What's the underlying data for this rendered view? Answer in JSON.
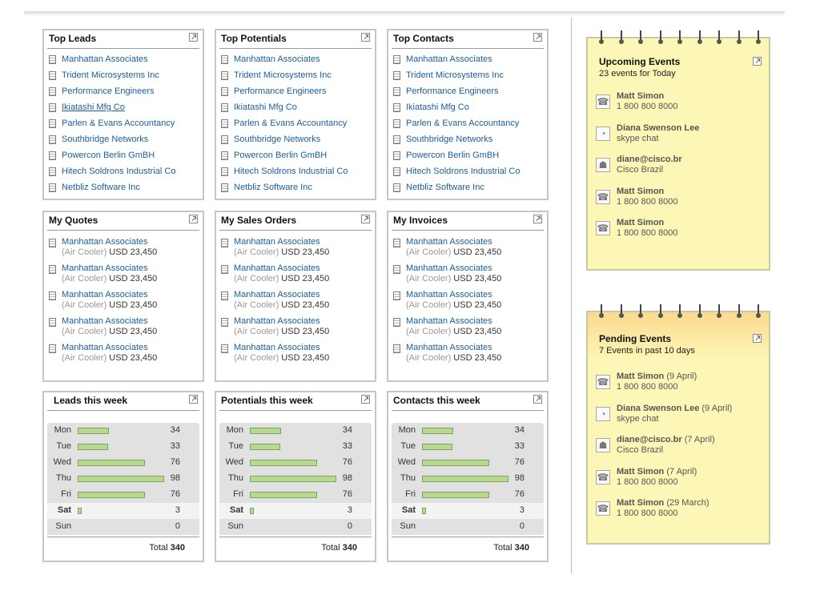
{
  "top_panels": [
    {
      "title": "Top Leads",
      "items": [
        "Manhattan Associates",
        "Trident Microsystems Inc",
        "Performance Engineers",
        "Ikiatashi Mfg Co",
        "Parlen & Evans Accountancy",
        "Southbridge Networks",
        "Powercon Berlin GmBH",
        "Hitech Soldrons Industrial Co",
        "Netbliz Software Inc"
      ]
    },
    {
      "title": "Top Potentials",
      "items": [
        "Manhattan Associates",
        "Trident Microsystems Inc",
        "Performance Engineers",
        "Ikiatashi Mfg Co",
        "Parlen & Evans Accountancy",
        "Southbridge Networks",
        "Powercon Berlin GmBH",
        "Hitech Soldrons Industrial Co",
        "Netbliz Software Inc"
      ]
    },
    {
      "title": "Top Contacts",
      "items": [
        "Manhattan Associates",
        "Trident Microsystems Inc",
        "Performance Engineers",
        "Ikiatashi Mfg Co",
        "Parlen & Evans Accountancy",
        "Southbridge Networks",
        "Powercon Berlin GmBH",
        "Hitech Soldrons Industrial Co",
        "Netbliz Software Inc"
      ]
    }
  ],
  "mid_panels": [
    {
      "title": "My Quotes",
      "items": [
        {
          "name": "Manhattan Associates",
          "product": "(Air Cooler)",
          "amount": "USD 23,450"
        },
        {
          "name": "Manhattan Associates",
          "product": "(Air Cooler)",
          "amount": "USD 23,450"
        },
        {
          "name": "Manhattan Associates",
          "product": "(Air Cooler)",
          "amount": "USD 23,450"
        },
        {
          "name": "Manhattan Associates",
          "product": "(Air Cooler)",
          "amount": "USD 23,450"
        },
        {
          "name": "Manhattan Associates",
          "product": "(Air Cooler)",
          "amount": "USD 23,450"
        }
      ]
    },
    {
      "title": "My Sales Orders",
      "items": [
        {
          "name": "Manhattan Associates",
          "product": "(Air Cooler)",
          "amount": "USD 23,450"
        },
        {
          "name": "Manhattan Associates",
          "product": "(Air Cooler)",
          "amount": "USD 23,450"
        },
        {
          "name": "Manhattan Associates",
          "product": "(Air Cooler)",
          "amount": "USD 23,450"
        },
        {
          "name": "Manhattan Associates",
          "product": "(Air Cooler)",
          "amount": "USD 23,450"
        },
        {
          "name": "Manhattan Associates",
          "product": "(Air Cooler)",
          "amount": "USD 23,450"
        }
      ]
    },
    {
      "title": "My Invoices",
      "items": [
        {
          "name": "Manhattan Associates",
          "product": "(Air Cooler)",
          "amount": "USD 23,450"
        },
        {
          "name": "Manhattan Associates",
          "product": "(Air Cooler)",
          "amount": "USD 23,450"
        },
        {
          "name": "Manhattan Associates",
          "product": "(Air Cooler)",
          "amount": "USD 23,450"
        },
        {
          "name": "Manhattan Associates",
          "product": "(Air Cooler)",
          "amount": "USD 23,450"
        },
        {
          "name": "Manhattan Associates",
          "product": "(Air Cooler)",
          "amount": "USD 23,450"
        }
      ]
    }
  ],
  "week_panels": [
    {
      "title": "Leads this week",
      "total_label": "Total",
      "total": "340"
    },
    {
      "title": "Potentials  this week",
      "total_label": "Total",
      "total": "340"
    },
    {
      "title": "Contacts  this week",
      "total_label": "Total",
      "total": "340"
    }
  ],
  "chart_data": {
    "type": "bar",
    "categories": [
      "Mon",
      "Tue",
      "Wed",
      "Thu",
      "Fri",
      "Sat",
      "Sun"
    ],
    "values": [
      34,
      33,
      76,
      98,
      76,
      3,
      0
    ],
    "xlim": [
      0,
      100
    ]
  },
  "upcoming": {
    "title": "Upcoming Events",
    "subtitle": "23 events for Today",
    "events": [
      {
        "icon": "phone-icon",
        "glyph": "☎",
        "name": "Matt Simon",
        "date": "",
        "info": "1 800 800 8000"
      },
      {
        "icon": "chat-icon",
        "glyph": "◔",
        "name": "Diana Swenson Lee",
        "date": "",
        "info": "skype chat"
      },
      {
        "icon": "person-icon",
        "glyph": "☗",
        "name": "diane@cisco.br",
        "date": "",
        "info": "Cisco Brazil"
      },
      {
        "icon": "phone-icon",
        "glyph": "☎",
        "name": "Matt Simon",
        "date": "",
        "info": "1 800 800 8000"
      },
      {
        "icon": "phone-icon",
        "glyph": "☎",
        "name": "Matt Simon",
        "date": "",
        "info": "1 800 800 8000"
      }
    ]
  },
  "pending": {
    "title": "Pending  Events",
    "subtitle": "7 Events in past 10 days",
    "events": [
      {
        "icon": "phone-icon",
        "glyph": "☎",
        "name": "Matt Simon",
        "date": "(9 April)",
        "info": "1 800 800 8000"
      },
      {
        "icon": "chat-icon",
        "glyph": "◔",
        "name": "Diana Swenson Lee",
        "date": "(9 April)",
        "info": "skype chat"
      },
      {
        "icon": "person-icon",
        "glyph": "☗",
        "name": "diane@cisco.br",
        "date": "(7 April)",
        "info": "Cisco Brazil"
      },
      {
        "icon": "phone-icon",
        "glyph": "☎",
        "name": "Matt Simon",
        "date": "(7 April)",
        "info": "1 800 800 8000"
      },
      {
        "icon": "phone-icon",
        "glyph": "☎",
        "name": "Matt Simon",
        "date": "(29 March)",
        "info": "1 800 800 8000"
      }
    ]
  },
  "colors": {
    "link": "#1a5ea0",
    "bar_fill": "#b9d993",
    "note_yellow": "#fcf7b6",
    "note_header_orange": "#fbd98f"
  }
}
